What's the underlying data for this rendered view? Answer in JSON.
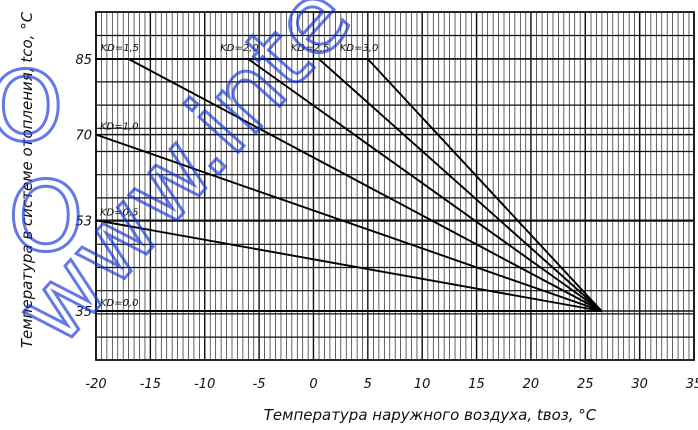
{
  "chart_data": {
    "type": "line",
    "title": "",
    "xlabel": "Температура наружного воздуха, tвоз, °C",
    "ylabel": "Температура в системе отопления, tсо, °C",
    "xlim": [
      -20,
      35
    ],
    "ylim": [
      30,
      100
    ],
    "x_ticks": [
      "-20",
      "-15",
      "-10",
      "-5",
      "0",
      "5",
      "10",
      "15",
      "20",
      "25",
      "30",
      "35"
    ],
    "y_ticks": [
      {
        "value": 85,
        "label": "85"
      },
      {
        "value": 70,
        "label": "70"
      },
      {
        "value": 53,
        "label": "53"
      },
      {
        "value": 35,
        "label": "35"
      }
    ],
    "grid": true,
    "series": [
      {
        "name": "KD=0,0",
        "x": [
          -20,
          26.5
        ],
        "y": [
          35,
          35
        ]
      },
      {
        "name": "KD=0,5",
        "x": [
          -20,
          26.5
        ],
        "y": [
          53,
          35
        ]
      },
      {
        "name": "KD=1,0",
        "x": [
          -20,
          26.5
        ],
        "y": [
          70,
          35
        ]
      },
      {
        "name": "KD=1,5",
        "x": [
          -17,
          26.5
        ],
        "y": [
          85,
          35
        ]
      },
      {
        "name": "KD=2,0",
        "x": [
          -6,
          26.5
        ],
        "y": [
          85,
          35
        ]
      },
      {
        "name": "KD=2,5",
        "x": [
          0.5,
          26.5
        ],
        "y": [
          85,
          35
        ]
      },
      {
        "name": "KD=3,0",
        "x": [
          5,
          26.5
        ],
        "y": [
          85,
          35
        ]
      }
    ],
    "hline": {
      "y": 85,
      "x": [
        -20,
        5
      ]
    }
  },
  "watermark": {
    "text": "www.inte",
    "logo_text": "OOO",
    "color": "#1233d6"
  }
}
